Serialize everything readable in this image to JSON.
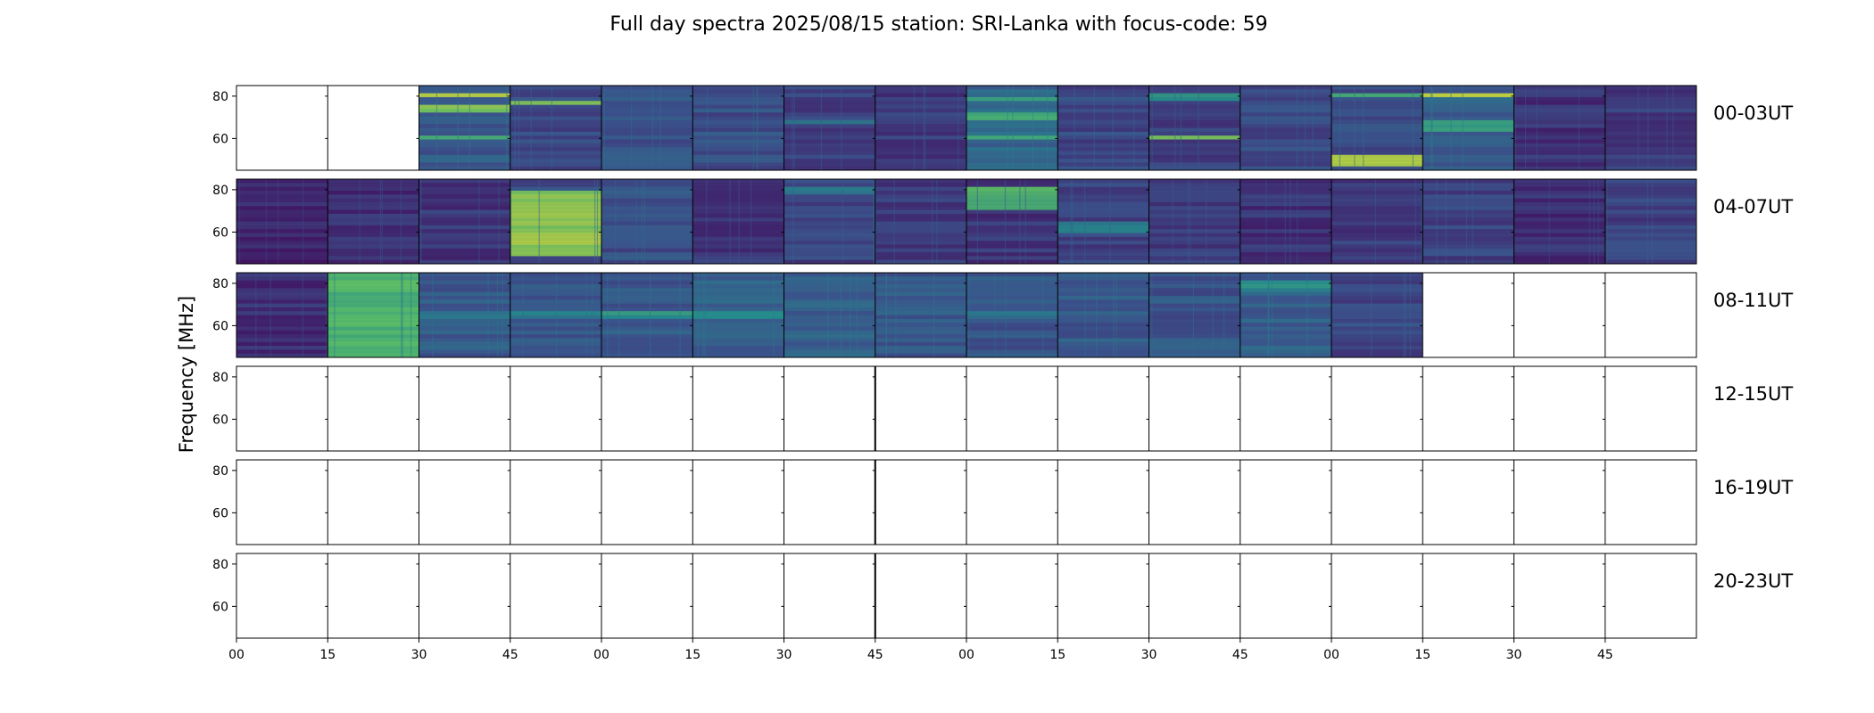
{
  "chart_data": {
    "type": "heatmap",
    "title": "Full day spectra 2025/08/15 station: SRI-Lanka with focus-code: 59",
    "ylabel": "Frequency [MHz]",
    "xlabel": "",
    "ylim": [
      45,
      85
    ],
    "yticks": [
      60,
      80
    ],
    "xtick_labels": [
      "00",
      "15",
      "30",
      "45",
      "00",
      "15",
      "30",
      "45",
      "00",
      "15",
      "30",
      "45",
      "00",
      "15",
      "30",
      "45"
    ],
    "colormap": "viridis",
    "colors": {
      "dark": "#440154",
      "mid": "#31688e",
      "teal": "#21918c",
      "green": "#5ec962",
      "yellow": "#fde725"
    },
    "rows": [
      {
        "label": "00-03UT",
        "panels": [
          {
            "filled": false
          },
          {
            "filled": false
          },
          {
            "filled": true,
            "base": 0.28,
            "bands": [
              [
                0.05,
                0.1,
                0.95
              ],
              [
                0.22,
                0.3,
                0.8
              ],
              [
                0.55,
                0.62,
                0.7
              ]
            ]
          },
          {
            "filled": true,
            "base": 0.22,
            "bands": [
              [
                0.18,
                0.22,
                0.85
              ]
            ]
          },
          {
            "filled": true,
            "base": 0.25,
            "bands": []
          },
          {
            "filled": true,
            "base": 0.24,
            "bands": []
          },
          {
            "filled": true,
            "base": 0.2,
            "bands": [
              [
                0.38,
                0.45,
                0.45
              ]
            ]
          },
          {
            "filled": true,
            "base": 0.18,
            "bands": []
          },
          {
            "filled": true,
            "base": 0.32,
            "bands": [
              [
                0.3,
                0.4,
                0.65
              ],
              [
                0.55,
                0.62,
                0.6
              ],
              [
                0.1,
                0.16,
                0.55
              ]
            ]
          },
          {
            "filled": true,
            "base": 0.22,
            "bands": []
          },
          {
            "filled": true,
            "base": 0.2,
            "bands": [
              [
                0.55,
                0.62,
                0.75
              ],
              [
                0.08,
                0.14,
                0.55
              ]
            ]
          },
          {
            "filled": true,
            "base": 0.22,
            "bands": []
          },
          {
            "filled": true,
            "base": 0.24,
            "bands": [
              [
                0.78,
                0.92,
                0.85
              ],
              [
                0.05,
                0.1,
                0.6
              ]
            ]
          },
          {
            "filled": true,
            "base": 0.3,
            "bands": [
              [
                0.05,
                0.12,
                0.95
              ],
              [
                0.4,
                0.5,
                0.6
              ]
            ]
          },
          {
            "filled": true,
            "base": 0.15,
            "bands": []
          },
          {
            "filled": true,
            "base": 0.18,
            "bands": []
          }
        ]
      },
      {
        "label": "04-07UT",
        "panels": [
          {
            "filled": true,
            "base": 0.12,
            "bands": []
          },
          {
            "filled": true,
            "base": 0.14,
            "bands": []
          },
          {
            "filled": true,
            "base": 0.16,
            "bands": []
          },
          {
            "filled": true,
            "base": 0.22,
            "bands": [
              [
                0.1,
                0.9,
                0.85
              ]
            ]
          },
          {
            "filled": true,
            "base": 0.24,
            "bands": []
          },
          {
            "filled": true,
            "base": 0.16,
            "bands": []
          },
          {
            "filled": true,
            "base": 0.2,
            "bands": [
              [
                0.05,
                0.15,
                0.45
              ]
            ]
          },
          {
            "filled": true,
            "base": 0.18,
            "bands": []
          },
          {
            "filled": true,
            "base": 0.16,
            "bands": [
              [
                0.05,
                0.35,
                0.7
              ]
            ]
          },
          {
            "filled": true,
            "base": 0.2,
            "bands": [
              [
                0.5,
                0.6,
                0.45
              ]
            ]
          },
          {
            "filled": true,
            "base": 0.18,
            "bands": []
          },
          {
            "filled": true,
            "base": 0.15,
            "bands": []
          },
          {
            "filled": true,
            "base": 0.18,
            "bands": []
          },
          {
            "filled": true,
            "base": 0.2,
            "bands": []
          },
          {
            "filled": true,
            "base": 0.14,
            "bands": []
          },
          {
            "filled": true,
            "base": 0.2,
            "bands": []
          }
        ]
      },
      {
        "label": "08-11UT",
        "panels": [
          {
            "filled": true,
            "base": 0.14,
            "bands": []
          },
          {
            "filled": true,
            "base": 0.3,
            "bands": [
              [
                0.0,
                1.0,
                0.7
              ]
            ]
          },
          {
            "filled": true,
            "base": 0.28,
            "bands": [
              [
                0.45,
                0.52,
                0.45
              ]
            ]
          },
          {
            "filled": true,
            "base": 0.26,
            "bands": [
              [
                0.45,
                0.52,
                0.45
              ]
            ]
          },
          {
            "filled": true,
            "base": 0.28,
            "bands": [
              [
                0.45,
                0.52,
                0.55
              ]
            ]
          },
          {
            "filled": true,
            "base": 0.3,
            "bands": [
              [
                0.45,
                0.52,
                0.45
              ]
            ]
          },
          {
            "filled": true,
            "base": 0.3,
            "bands": []
          },
          {
            "filled": true,
            "base": 0.28,
            "bands": []
          },
          {
            "filled": true,
            "base": 0.26,
            "bands": [
              [
                0.45,
                0.52,
                0.4
              ]
            ]
          },
          {
            "filled": true,
            "base": 0.28,
            "bands": []
          },
          {
            "filled": true,
            "base": 0.26,
            "bands": []
          },
          {
            "filled": true,
            "base": 0.3,
            "bands": [
              [
                0.05,
                0.2,
                0.5
              ]
            ]
          },
          {
            "filled": true,
            "base": 0.22,
            "bands": []
          },
          {
            "filled": false
          },
          {
            "filled": false
          },
          {
            "filled": false
          }
        ]
      },
      {
        "label": "12-15UT",
        "panels": []
      },
      {
        "label": "16-19UT",
        "panels": []
      },
      {
        "label": "20-23UT",
        "panels": []
      }
    ]
  }
}
